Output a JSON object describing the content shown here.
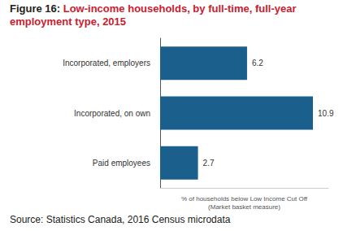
{
  "chart_data": {
    "type": "bar",
    "title": "Figure 16: Low-income households, by full-time, full-year employment type, 2015",
    "source": "Source: Statistics Canada, 2016 Census microdata",
    "xlabel": "% of households below Low Income Cut Off\n(Market basket measure)",
    "categories": [
      "Incorporated, employers",
      "Incorporated, on own",
      "Paid employees"
    ],
    "values": [
      6.2,
      10.9,
      2.7
    ],
    "color": "#1b5f8c",
    "orientation": "horizontal",
    "data_labels": true,
    "tick_labels": "y",
    "grid": false,
    "xlim": [
      0,
      12
    ]
  }
}
